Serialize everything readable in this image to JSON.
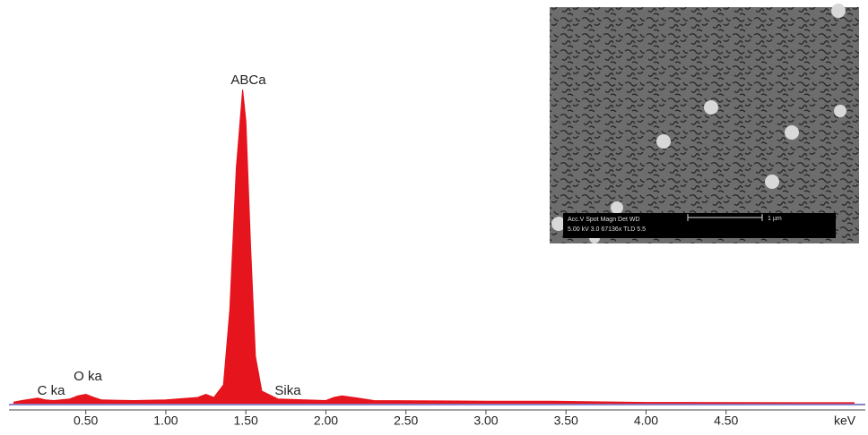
{
  "chart_data": {
    "type": "area",
    "x_label": "keV",
    "annotations": [
      "ABCa",
      "O ka",
      "C ka",
      "Sika"
    ],
    "x": [
      0.05,
      0.1,
      0.2,
      0.25,
      0.3,
      0.4,
      0.45,
      0.5,
      0.55,
      0.6,
      0.8,
      1.0,
      1.2,
      1.25,
      1.3,
      1.36,
      1.4,
      1.44,
      1.48,
      1.5,
      1.53,
      1.56,
      1.6,
      1.7,
      2.0,
      2.05,
      2.1,
      2.2,
      2.3,
      3.0,
      3.4,
      4.0,
      5.3
    ],
    "values": [
      0.5,
      1,
      1.8,
      1.2,
      1,
      1.5,
      2.5,
      3,
      2,
      1.2,
      1,
      1.2,
      2,
      3,
      2,
      6,
      30,
      75,
      100,
      90,
      50,
      15,
      4,
      1.5,
      1,
      2,
      2.5,
      1.8,
      1,
      0.8,
      0.8,
      0.4,
      0.3
    ],
    "color": "#e5141d",
    "xlim": [
      0.02,
      5.37
    ],
    "ylim": [
      0,
      100
    ],
    "xticks": [
      {
        "value": 0.5,
        "label": "0.50"
      },
      {
        "value": 1,
        "label": "1.00"
      },
      {
        "value": 1.5,
        "label": "1.50"
      },
      {
        "value": 2,
        "label": "2.00"
      },
      {
        "value": 2.5,
        "label": "2.50"
      },
      {
        "value": 3,
        "label": "3.00"
      },
      {
        "value": 3.5,
        "label": "3.50"
      },
      {
        "value": 4,
        "label": "4.00"
      },
      {
        "value": 4.5,
        "label": "4.50"
      }
    ]
  },
  "inset": {
    "header": "Acc.V  Spot Magn    Det  WD",
    "settings": "5.00 kV 3.0  67136x   TLD  5.5",
    "scale": "1 µm"
  }
}
